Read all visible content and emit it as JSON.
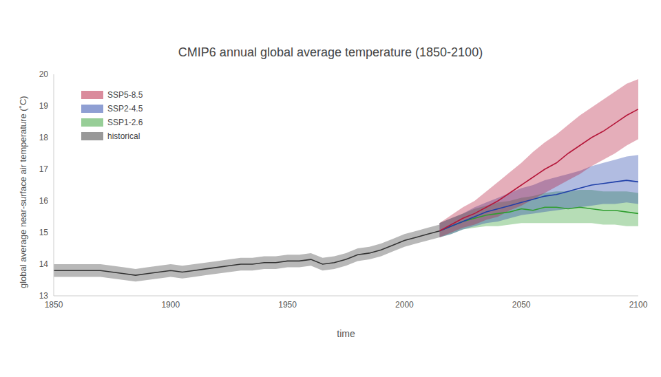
{
  "chart_data": {
    "type": "line",
    "title": "CMIP6 annual global average temperature (1850-2100)",
    "x_label": "time",
    "y_label": "global average near-surface air temperature (˚C)",
    "x": [
      1850,
      1855,
      1860,
      1865,
      1870,
      1875,
      1880,
      1885,
      1890,
      1895,
      1900,
      1905,
      1910,
      1915,
      1920,
      1925,
      1930,
      1935,
      1940,
      1945,
      1950,
      1955,
      1960,
      1965,
      1970,
      1975,
      1980,
      1985,
      1990,
      1995,
      2000,
      2005,
      2010,
      2015,
      2020,
      2025,
      2030,
      2035,
      2040,
      2045,
      2050,
      2055,
      2060,
      2065,
      2070,
      2075,
      2080,
      2085,
      2090,
      2095,
      2100
    ],
    "xlim": [
      1850,
      2100
    ],
    "xticks": [
      1850,
      1900,
      1950,
      2000,
      2050,
      2100
    ],
    "ylim": [
      13,
      20
    ],
    "yticks": [
      13,
      14,
      15,
      16,
      17,
      18,
      19,
      20
    ],
    "grid": false,
    "legend": "upper left",
    "series": [
      {
        "name": "SSP5-8.5",
        "color": "#b5173a",
        "values": [
          null,
          null,
          null,
          null,
          null,
          null,
          null,
          null,
          null,
          null,
          null,
          null,
          null,
          null,
          null,
          null,
          null,
          null,
          null,
          null,
          null,
          null,
          null,
          null,
          null,
          null,
          null,
          null,
          null,
          null,
          null,
          null,
          null,
          15.05,
          15.25,
          15.45,
          15.6,
          15.8,
          16.0,
          16.25,
          16.5,
          16.75,
          17.0,
          17.2,
          17.5,
          17.75,
          18.0,
          18.2,
          18.45,
          18.7,
          18.9
        ],
        "lower": [
          null,
          null,
          null,
          null,
          null,
          null,
          null,
          null,
          null,
          null,
          null,
          null,
          null,
          null,
          null,
          null,
          null,
          null,
          null,
          null,
          null,
          null,
          null,
          null,
          null,
          null,
          null,
          null,
          null,
          null,
          null,
          null,
          null,
          14.85,
          15.0,
          15.15,
          15.25,
          15.4,
          15.5,
          15.7,
          15.85,
          16.05,
          16.25,
          16.45,
          16.65,
          16.85,
          17.1,
          17.3,
          17.5,
          17.75,
          17.95
        ],
        "upper": [
          null,
          null,
          null,
          null,
          null,
          null,
          null,
          null,
          null,
          null,
          null,
          null,
          null,
          null,
          null,
          null,
          null,
          null,
          null,
          null,
          null,
          null,
          null,
          null,
          null,
          null,
          null,
          null,
          null,
          null,
          null,
          null,
          null,
          15.3,
          15.55,
          15.8,
          16.0,
          16.3,
          16.6,
          16.9,
          17.2,
          17.55,
          17.85,
          18.1,
          18.4,
          18.7,
          18.95,
          19.2,
          19.45,
          19.7,
          19.85
        ]
      },
      {
        "name": "SSP2-4.5",
        "color": "#1f3fa8",
        "values": [
          null,
          null,
          null,
          null,
          null,
          null,
          null,
          null,
          null,
          null,
          null,
          null,
          null,
          null,
          null,
          null,
          null,
          null,
          null,
          null,
          null,
          null,
          null,
          null,
          null,
          null,
          null,
          null,
          null,
          null,
          null,
          null,
          null,
          15.05,
          15.2,
          15.35,
          15.5,
          15.65,
          15.75,
          15.85,
          15.95,
          16.05,
          16.15,
          16.2,
          16.3,
          16.4,
          16.5,
          16.55,
          16.6,
          16.65,
          16.6
        ],
        "lower": [
          null,
          null,
          null,
          null,
          null,
          null,
          null,
          null,
          null,
          null,
          null,
          null,
          null,
          null,
          null,
          null,
          null,
          null,
          null,
          null,
          null,
          null,
          null,
          null,
          null,
          null,
          null,
          null,
          null,
          null,
          null,
          null,
          null,
          14.85,
          14.95,
          15.1,
          15.2,
          15.3,
          15.35,
          15.45,
          15.55,
          15.6,
          15.65,
          15.7,
          15.75,
          15.8,
          15.85,
          15.9,
          15.9,
          15.95,
          15.9
        ],
        "upper": [
          null,
          null,
          null,
          null,
          null,
          null,
          null,
          null,
          null,
          null,
          null,
          null,
          null,
          null,
          null,
          null,
          null,
          null,
          null,
          null,
          null,
          null,
          null,
          null,
          null,
          null,
          null,
          null,
          null,
          null,
          null,
          null,
          null,
          15.3,
          15.45,
          15.6,
          15.8,
          15.95,
          16.1,
          16.25,
          16.4,
          16.5,
          16.65,
          16.75,
          16.85,
          16.95,
          17.1,
          17.2,
          17.3,
          17.4,
          17.45
        ]
      },
      {
        "name": "SSP1-2.6",
        "color": "#2f9e2f",
        "values": [
          null,
          null,
          null,
          null,
          null,
          null,
          null,
          null,
          null,
          null,
          null,
          null,
          null,
          null,
          null,
          null,
          null,
          null,
          null,
          null,
          null,
          null,
          null,
          null,
          null,
          null,
          null,
          null,
          null,
          null,
          null,
          null,
          null,
          15.05,
          15.2,
          15.35,
          15.45,
          15.55,
          15.6,
          15.65,
          15.75,
          15.7,
          15.8,
          15.8,
          15.75,
          15.8,
          15.75,
          15.7,
          15.7,
          15.65,
          15.6
        ],
        "lower": [
          null,
          null,
          null,
          null,
          null,
          null,
          null,
          null,
          null,
          null,
          null,
          null,
          null,
          null,
          null,
          null,
          null,
          null,
          null,
          null,
          null,
          null,
          null,
          null,
          null,
          null,
          null,
          null,
          null,
          null,
          null,
          null,
          null,
          14.85,
          14.95,
          15.1,
          15.15,
          15.2,
          15.2,
          15.25,
          15.3,
          15.3,
          15.3,
          15.3,
          15.3,
          15.3,
          15.3,
          15.25,
          15.25,
          15.2,
          15.2
        ],
        "upper": [
          null,
          null,
          null,
          null,
          null,
          null,
          null,
          null,
          null,
          null,
          null,
          null,
          null,
          null,
          null,
          null,
          null,
          null,
          null,
          null,
          null,
          null,
          null,
          null,
          null,
          null,
          null,
          null,
          null,
          null,
          null,
          null,
          null,
          15.3,
          15.45,
          15.6,
          15.75,
          15.85,
          15.95,
          16.0,
          16.1,
          16.15,
          16.25,
          16.3,
          16.3,
          16.35,
          16.35,
          16.3,
          16.3,
          16.3,
          16.25
        ]
      },
      {
        "name": "historical",
        "color": "#333333",
        "values": [
          13.8,
          13.8,
          13.8,
          13.8,
          13.8,
          13.75,
          13.7,
          13.65,
          13.7,
          13.75,
          13.8,
          13.75,
          13.8,
          13.85,
          13.9,
          13.95,
          14.0,
          14.0,
          14.05,
          14.05,
          14.1,
          14.1,
          14.15,
          14.0,
          14.05,
          14.15,
          14.3,
          14.35,
          14.45,
          14.6,
          14.75,
          14.85,
          14.95,
          15.05,
          null,
          null,
          null,
          null,
          null,
          null,
          null,
          null,
          null,
          null,
          null,
          null,
          null,
          null,
          null,
          null,
          null
        ],
        "lower": [
          13.6,
          13.6,
          13.6,
          13.6,
          13.6,
          13.55,
          13.5,
          13.45,
          13.5,
          13.55,
          13.6,
          13.55,
          13.6,
          13.65,
          13.7,
          13.75,
          13.8,
          13.8,
          13.85,
          13.85,
          13.9,
          13.9,
          13.95,
          13.8,
          13.85,
          13.95,
          14.1,
          14.15,
          14.25,
          14.4,
          14.55,
          14.65,
          14.75,
          14.85,
          null,
          null,
          null,
          null,
          null,
          null,
          null,
          null,
          null,
          null,
          null,
          null,
          null,
          null,
          null,
          null,
          null
        ],
        "upper": [
          14.0,
          14.0,
          14.0,
          14.0,
          14.0,
          13.95,
          13.9,
          13.85,
          13.9,
          13.95,
          14.0,
          13.95,
          14.0,
          14.05,
          14.1,
          14.15,
          14.2,
          14.2,
          14.25,
          14.25,
          14.3,
          14.3,
          14.35,
          14.2,
          14.25,
          14.35,
          14.5,
          14.55,
          14.65,
          14.8,
          14.95,
          15.05,
          15.15,
          15.25,
          null,
          null,
          null,
          null,
          null,
          null,
          null,
          null,
          null,
          null,
          null,
          null,
          null,
          null,
          null,
          null,
          null
        ]
      }
    ]
  }
}
